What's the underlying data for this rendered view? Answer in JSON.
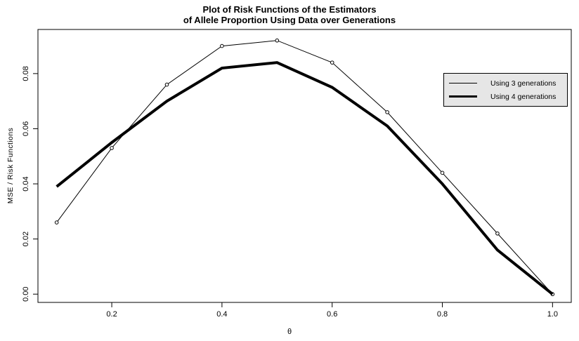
{
  "title": {
    "line1": "Plot of Risk Functions of the Estimators",
    "line2": "of Allele Proportion Using Data over Generations"
  },
  "axes": {
    "x_label": "θ",
    "y_label": "MSE / Risk Functions"
  },
  "colors": {
    "line": "#000000",
    "plot_background": "#ffffff",
    "legend_background": "#e6e6e6",
    "legend_border": "#000000"
  },
  "chart_data": {
    "type": "line",
    "title": "Plot of Risk Functions of the Estimators of Allele Proportion Using Data over Generations",
    "xlabel": "θ",
    "ylabel": "MSE / Risk Functions",
    "x": [
      0.1,
      0.2,
      0.3,
      0.4,
      0.5,
      0.6,
      0.7,
      0.8,
      0.9,
      1.0
    ],
    "series": [
      {
        "name": "Using 3 generations",
        "marker": "open-circle",
        "line_width": 1,
        "values": [
          0.026,
          0.053,
          0.076,
          0.09,
          0.092,
          0.084,
          0.066,
          0.044,
          0.022,
          0.0
        ]
      },
      {
        "name": "Using 4 generations",
        "marker": "none",
        "line_width": 4,
        "values": [
          0.039,
          0.055,
          0.07,
          0.082,
          0.084,
          0.075,
          0.061,
          0.04,
          0.016,
          0.0
        ]
      }
    ],
    "xlim": [
      0.066,
      1.034
    ],
    "ylim": [
      -0.003,
      0.096
    ],
    "x_tick_values": [
      0.2,
      0.4,
      0.6,
      0.8,
      1.0
    ],
    "x_tick_labels": [
      "0.2",
      "0.4",
      "0.6",
      "0.8",
      "1.0"
    ],
    "y_tick_values": [
      0.0,
      0.02,
      0.04,
      0.06,
      0.08
    ],
    "y_tick_labels": [
      "0.00",
      "0.02",
      "0.04",
      "0.06",
      "0.08"
    ],
    "grid": false,
    "legend_position": "right-inside"
  }
}
